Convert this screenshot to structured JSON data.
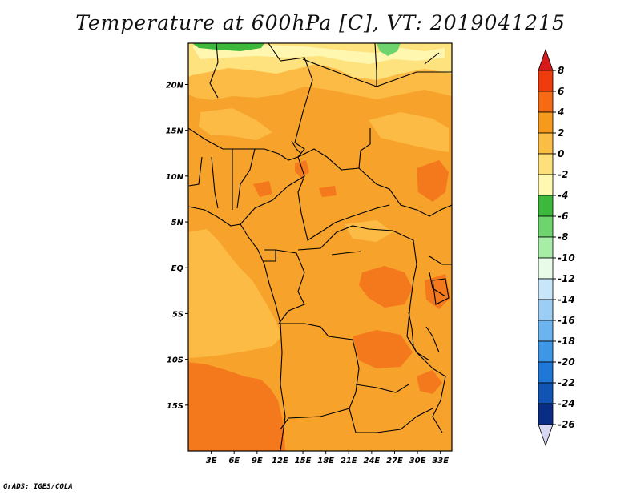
{
  "title": "Temperature at 600hPa [C], VT: 2019041215",
  "credit": "GrADS: IGES/COLA",
  "map": {
    "lon_range": [
      0,
      34.5
    ],
    "lat_range": [
      -20,
      24.5
    ],
    "lon_ticks": [
      "3E",
      "6E",
      "9E",
      "12E",
      "15E",
      "18E",
      "21E",
      "24E",
      "27E",
      "30E",
      "33E"
    ],
    "lat_ticks": [
      "20N",
      "15N",
      "10N",
      "5N",
      "EQ",
      "5S",
      "10S",
      "15S"
    ]
  },
  "colorbar": {
    "labels": [
      "8",
      "6",
      "4",
      "2",
      "0",
      "-2",
      "-4",
      "-6",
      "-8",
      "-10",
      "-12",
      "-14",
      "-16",
      "-18",
      "-20",
      "-22",
      "-24",
      "-26"
    ],
    "colors": [
      "#d7191c",
      "#f03c0c",
      "#f66a14",
      "#f79a1c",
      "#fbbe45",
      "#fde07a",
      "#fff8b0",
      "#3cb83c",
      "#6ed46e",
      "#a6eea6",
      "#e8fae8",
      "#c8e6fa",
      "#9ccef5",
      "#6cb4ef",
      "#3e96e6",
      "#1f78d8",
      "#1154b4",
      "#092c84",
      "#d8d8f4"
    ]
  }
}
